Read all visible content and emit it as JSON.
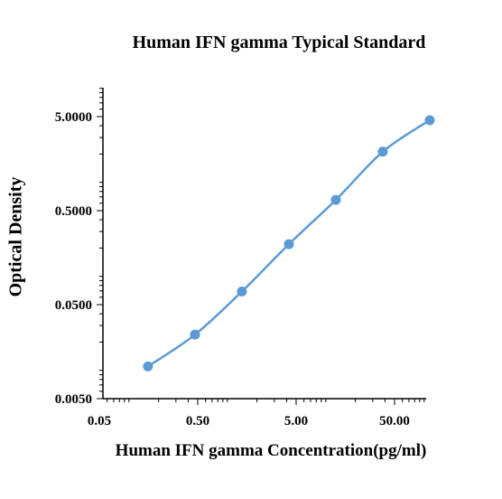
{
  "chart_data": {
    "type": "line",
    "title": "Human  IFN gamma Typical Standard",
    "xlabel": "Human  IFN gamma Concentration(pg/ml)",
    "ylabel": "Optical Density",
    "xscale": "log",
    "yscale": "log",
    "xlim": [
      0.05,
      75
    ],
    "ylim": [
      0.005,
      12
    ],
    "x_ticks": [
      0.05,
      0.5,
      5,
      50
    ],
    "x_tick_labels": [
      "0.05",
      "0.50",
      "5.00",
      "50.00"
    ],
    "y_ticks": [
      0.005,
      0.05,
      0.5,
      5
    ],
    "y_tick_labels": [
      "0.0050",
      "0.0500",
      "0.5000",
      "5.0000"
    ],
    "grid": false,
    "legend": "none",
    "series": [
      {
        "x": [
          0.156,
          0.469,
          1.406,
          4.219,
          12.656,
          37.969,
          113.906
        ],
        "y": [
          0.011,
          0.024,
          0.069,
          0.22,
          0.65,
          2.12,
          4.58
        ],
        "color": "#5b9bd5"
      }
    ]
  }
}
